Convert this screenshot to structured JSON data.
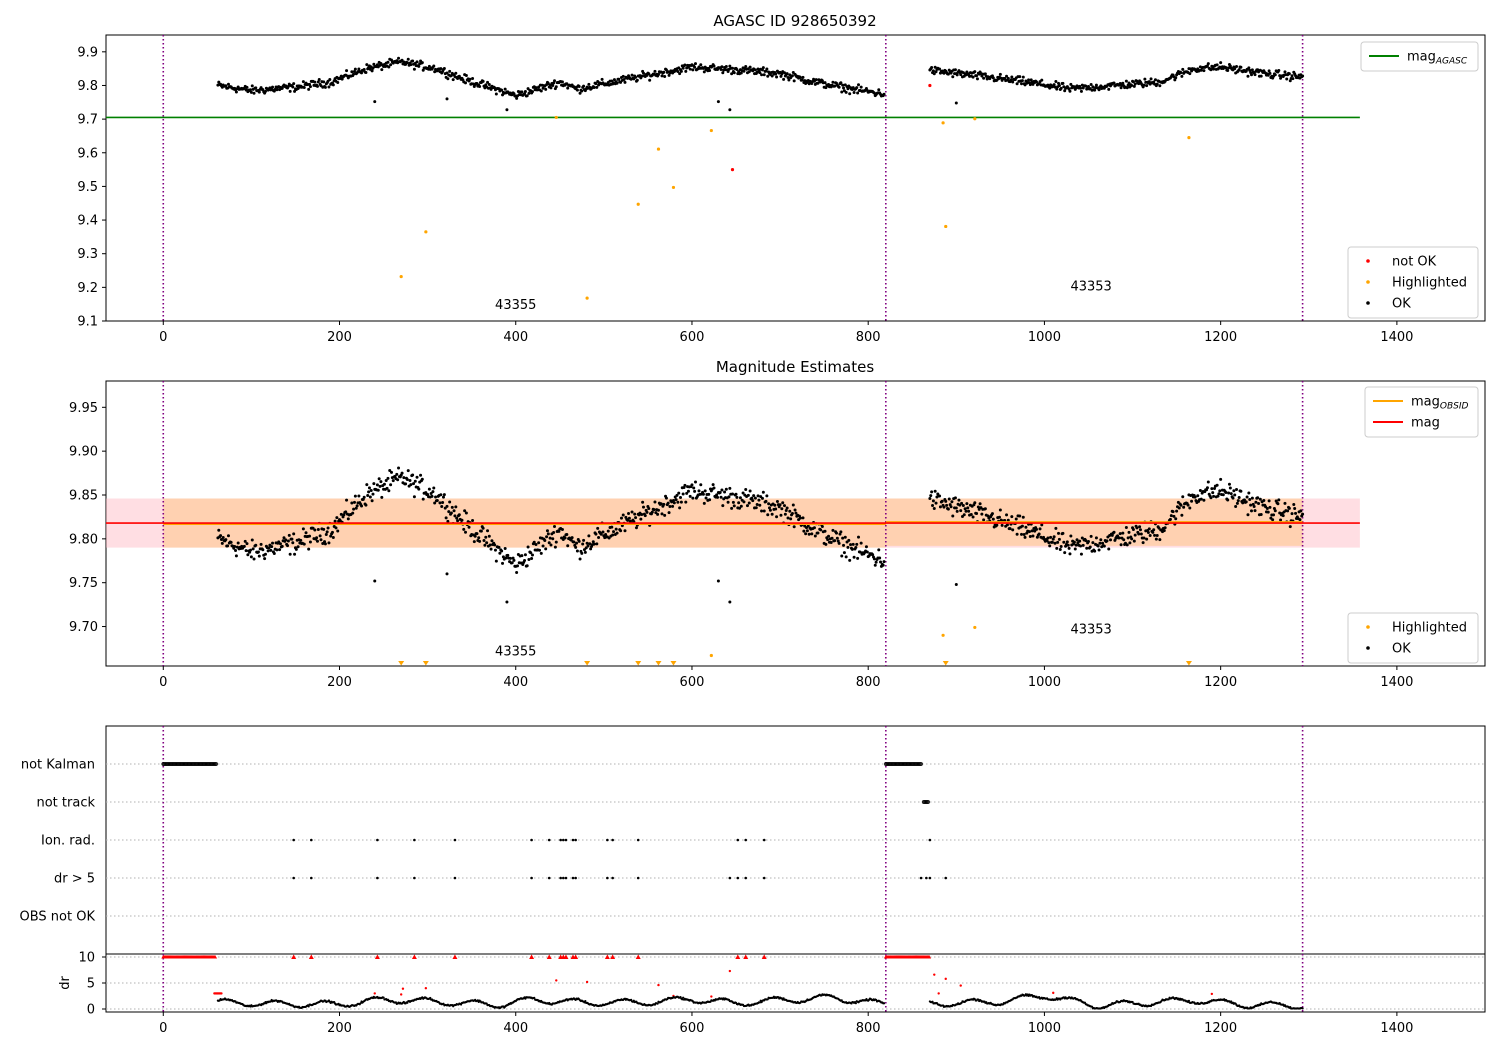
{
  "chart_data": [
    {
      "type": "scatter",
      "title": "AGASC ID 928650392",
      "xlim": [
        -65,
        1500
      ],
      "ylim": [
        9.1,
        9.95
      ],
      "yticks": [
        9.1,
        9.2,
        9.3,
        9.4,
        9.5,
        9.6,
        9.7,
        9.8,
        9.9
      ],
      "xticks": [
        0,
        200,
        400,
        600,
        800,
        1000,
        1200,
        1400
      ],
      "reference_lines": [
        {
          "label": "mag",
          "subscript": "AGASC",
          "value": 9.705,
          "color": "#008000",
          "x_range": [
            -65,
            1358
          ]
        }
      ],
      "obsid_boundaries": [
        0,
        820,
        1293
      ],
      "obsid_labels": [
        {
          "text": "43355",
          "x": 400,
          "y": 9.135
        },
        {
          "text": "43353",
          "x": 1053,
          "y": 9.19
        }
      ],
      "legend": {
        "position": "lower-right",
        "entries": [
          {
            "label": "not OK",
            "color": "#ff0000"
          },
          {
            "label": "Highlighted",
            "color": "#ffa500"
          },
          {
            "label": "OK",
            "color": "#000000"
          }
        ]
      },
      "series": [
        {
          "name": "OK",
          "color": "#000000",
          "segments": [
            {
              "x_start": 62,
              "x_end": 818,
              "anchors": [
                [
                  62,
                  9.8
                ],
                [
                  100,
                  9.785
                ],
                [
                  150,
                  9.795
                ],
                [
                  190,
                  9.81
                ],
                [
                  230,
                  9.85
                ],
                [
                  270,
                  9.87
                ],
                [
                  310,
                  9.85
                ],
                [
                  340,
                  9.82
                ],
                [
                  400,
                  9.77
                ],
                [
                  450,
                  9.81
                ],
                [
                  470,
                  9.79
                ],
                [
                  530,
                  9.82
                ],
                [
                  600,
                  9.855
                ],
                [
                  660,
                  9.845
                ],
                [
                  700,
                  9.835
                ],
                [
                  740,
                  9.81
                ],
                [
                  780,
                  9.79
                ],
                [
                  818,
                  9.775
                ]
              ]
            },
            {
              "x_start": 870,
              "x_end": 1293,
              "anchors": [
                [
                  870,
                  9.845
                ],
                [
                  920,
                  9.83
                ],
                [
                  980,
                  9.81
                ],
                [
                  1030,
                  9.79
                ],
                [
                  1080,
                  9.8
                ],
                [
                  1130,
                  9.81
                ],
                [
                  1170,
                  9.85
                ],
                [
                  1200,
                  9.855
                ],
                [
                  1250,
                  9.835
                ],
                [
                  1293,
                  9.825
                ]
              ]
            }
          ],
          "outliers": [
            [
              240,
              9.752
            ],
            [
              322,
              9.76
            ],
            [
              390,
              9.728
            ],
            [
              630,
              9.752
            ],
            [
              643,
              9.728
            ],
            [
              900,
              9.748
            ]
          ]
        },
        {
          "name": "Highlighted",
          "color": "#ffa500",
          "points": [
            [
              270,
              9.232
            ],
            [
              298,
              9.365
            ],
            [
              446,
              9.705
            ],
            [
              481,
              9.168
            ],
            [
              539,
              9.447
            ],
            [
              562,
              9.611
            ],
            [
              579,
              9.497
            ],
            [
              622,
              9.666
            ],
            [
              885,
              9.689
            ],
            [
              888,
              9.381
            ],
            [
              921,
              9.701
            ],
            [
              1164,
              9.645
            ]
          ]
        },
        {
          "name": "not OK",
          "color": "#ff0000",
          "points": [
            [
              646,
              9.55
            ],
            [
              870,
              9.8
            ]
          ]
        }
      ]
    },
    {
      "type": "scatter",
      "title": "Magnitude Estimates",
      "xlim": [
        -65,
        1500
      ],
      "ylim": [
        9.655,
        9.98
      ],
      "yticks": [
        9.7,
        9.75,
        9.8,
        9.85,
        9.9,
        9.95
      ],
      "xticks": [
        0,
        200,
        400,
        600,
        800,
        1000,
        1200,
        1400
      ],
      "reference_lines": [
        {
          "label": "mag",
          "value": 9.818,
          "color": "#ff0000",
          "band": [
            9.79,
            9.846
          ],
          "x_range": [
            -65,
            1358
          ]
        },
        {
          "label": "mag",
          "subscript": "OBSID",
          "color": "#ffa500",
          "segments": [
            {
              "x_range": [
                0,
                820
              ],
              "value": 9.817,
              "band": [
                9.79,
                9.846
              ]
            },
            {
              "x_range": [
                820,
                1293
              ],
              "value": 9.819,
              "band": [
                9.792,
                9.846
              ]
            }
          ]
        }
      ],
      "obsid_boundaries": [
        0,
        820,
        1293
      ],
      "obsid_labels": [
        {
          "text": "43355",
          "x": 400,
          "y": 9.667
        },
        {
          "text": "43353",
          "x": 1053,
          "y": 9.692
        }
      ],
      "legend": {
        "position": "lower-right",
        "entries": [
          {
            "label": "Highlighted",
            "color": "#ffa500"
          },
          {
            "label": "OK",
            "color": "#000000"
          }
        ]
      },
      "legend_top": {
        "position": "top-right",
        "entries": [
          {
            "label": "mag",
            "subscript": "OBSID",
            "color": "#ffa500"
          },
          {
            "label": "mag",
            "color": "#ff0000"
          }
        ]
      },
      "series": [
        {
          "name": "OK",
          "color": "#000000",
          "same_as_panel": 0
        },
        {
          "name": "Highlighted",
          "color": "#ffa500",
          "points": [
            [
              622,
              9.667
            ],
            [
              885,
              9.69
            ],
            [
              921,
              9.699
            ]
          ],
          "below_range_markers": [
            270,
            298,
            481,
            539,
            562,
            579,
            888,
            1164
          ]
        }
      ]
    },
    {
      "type": "scatter",
      "title": "",
      "xlim": [
        -65,
        1500
      ],
      "flag_rows": [
        "not Kalman",
        "not track",
        "Ion. rad.",
        "dr > 5",
        "OBS not OK"
      ],
      "flags": {
        "not Kalman": [
          [
            0,
            60
          ],
          [
            820,
            860
          ]
        ],
        "not track": [
          [
            863,
            868
          ]
        ],
        "Ion. rad.": [
          148,
          168,
          243,
          285,
          331,
          418,
          438,
          451,
          454,
          457,
          465,
          468,
          504,
          510,
          539,
          652,
          661,
          682,
          870
        ],
        "dr > 5": [
          148,
          168,
          243,
          285,
          331,
          418,
          438,
          451,
          454,
          457,
          465,
          468,
          504,
          510,
          539,
          643,
          652,
          661,
          682,
          860,
          866,
          870,
          888
        ],
        "OBS not OK": []
      },
      "dr_panel": {
        "ylabel": "dr",
        "yticks": [
          0,
          5,
          10
        ],
        "ylim": [
          -0.5,
          10.5
        ],
        "clipped_value": 10,
        "clipped_ranges": [
          [
            0,
            60
          ],
          [
            820,
            870
          ]
        ],
        "clipped_points": [
          148,
          168,
          243,
          285,
          331,
          418,
          438,
          451,
          454,
          457,
          465,
          468,
          504,
          510,
          539,
          652,
          661,
          682
        ],
        "extra_red_points": [
          [
            240,
            3.0
          ],
          [
            270,
            2.8
          ],
          [
            272,
            3.9
          ],
          [
            298,
            4.0
          ],
          [
            446,
            5.5
          ],
          [
            481,
            5.2
          ],
          [
            562,
            4.6
          ],
          [
            579,
            2.5
          ],
          [
            622,
            2.4
          ],
          [
            643,
            7.3
          ],
          [
            875,
            6.6
          ],
          [
            880,
            3.0
          ],
          [
            888,
            5.8
          ],
          [
            905,
            4.5
          ],
          [
            1010,
            3.1
          ],
          [
            1190,
            2.9
          ]
        ],
        "trace_segments": [
          [
            62,
            818
          ],
          [
            870,
            1293
          ]
        ],
        "trace_anchors": [
          [
            62,
            1.3
          ],
          [
            120,
            1.0
          ],
          [
            200,
            0.9
          ],
          [
            250,
            1.8
          ],
          [
            300,
            1.5
          ],
          [
            380,
            0.8
          ],
          [
            420,
            1.8
          ],
          [
            480,
            1.2
          ],
          [
            550,
            1.3
          ],
          [
            600,
            1.9
          ],
          [
            650,
            1.1
          ],
          [
            700,
            1.7
          ],
          [
            760,
            2.2
          ],
          [
            818,
            0.9
          ],
          [
            870,
            1.0
          ],
          [
            950,
            1.4
          ],
          [
            1000,
            2.6
          ],
          [
            1060,
            0.6
          ],
          [
            1120,
            1.3
          ],
          [
            1170,
            1.7
          ],
          [
            1230,
            0.8
          ],
          [
            1293,
            0.6
          ]
        ]
      }
    }
  ]
}
